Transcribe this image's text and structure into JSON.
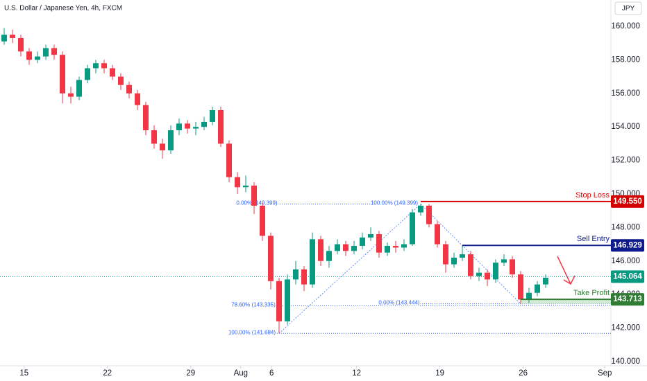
{
  "chart_data": {
    "type": "candlestick",
    "title": "U.S. Dollar / Japanese Yen, 4h, FXCM",
    "currency": "JPY",
    "up_color": "#089981",
    "down_color": "#f23645",
    "grid": false,
    "xlim": [
      -0.5,
      72.8333
    ],
    "ylim": [
      139.75,
      161.57
    ],
    "xticks": [
      {
        "value": 2.4,
        "label": "15"
      },
      {
        "value": 12.4,
        "label": "22"
      },
      {
        "value": 22.4,
        "label": "29"
      },
      {
        "value": 28.4,
        "label": "Aug"
      },
      {
        "value": 32.1,
        "label": "6"
      },
      {
        "value": 42.3,
        "label": "12"
      },
      {
        "value": 52.3,
        "label": "19"
      },
      {
        "value": 62.3,
        "label": "26"
      },
      {
        "value": 72.1,
        "label": "Sep"
      }
    ],
    "yticks": [
      {
        "value": 140,
        "label": "140.000"
      },
      {
        "value": 142,
        "label": "142.000"
      },
      {
        "value": 144,
        "label": "144.000"
      },
      {
        "value": 146,
        "label": "146.000"
      },
      {
        "value": 148,
        "label": "148.000"
      },
      {
        "value": 150,
        "label": "150.000"
      },
      {
        "value": 152,
        "label": "152.000"
      },
      {
        "value": 154,
        "label": "154.000"
      },
      {
        "value": 156,
        "label": "156.000"
      },
      {
        "value": 158,
        "label": "158.000"
      },
      {
        "value": 160,
        "label": "160.000"
      }
    ],
    "ohlc": [
      [
        159.1,
        159.9,
        158.9,
        159.5
      ],
      [
        159.5,
        159.8,
        159.0,
        159.3
      ],
      [
        159.3,
        159.5,
        158.2,
        158.5
      ],
      [
        158.5,
        158.7,
        157.7,
        158.0
      ],
      [
        158.0,
        158.5,
        157.8,
        158.2
      ],
      [
        158.2,
        158.9,
        158.0,
        158.7
      ],
      [
        158.7,
        158.9,
        158.0,
        158.3
      ],
      [
        158.3,
        158.5,
        155.4,
        156.0
      ],
      [
        156.0,
        156.4,
        155.4,
        155.8
      ],
      [
        155.8,
        157.0,
        155.6,
        156.8
      ],
      [
        156.8,
        157.7,
        156.6,
        157.5
      ],
      [
        157.5,
        158.0,
        157.2,
        157.8
      ],
      [
        157.8,
        158.0,
        157.2,
        157.5
      ],
      [
        157.5,
        157.7,
        156.8,
        157.0
      ],
      [
        157.0,
        157.2,
        156.2,
        156.5
      ],
      [
        156.5,
        156.7,
        155.7,
        156.0
      ],
      [
        156.0,
        156.2,
        155.0,
        155.3
      ],
      [
        155.3,
        155.5,
        153.5,
        153.8
      ],
      [
        153.8,
        154.1,
        152.7,
        153.0
      ],
      [
        153.0,
        153.3,
        152.1,
        152.6
      ],
      [
        152.6,
        154.1,
        152.4,
        153.8
      ],
      [
        153.8,
        154.5,
        153.5,
        154.2
      ],
      [
        154.2,
        154.4,
        153.6,
        153.9
      ],
      [
        153.9,
        154.3,
        153.5,
        154.0
      ],
      [
        154.0,
        154.6,
        153.8,
        154.3
      ],
      [
        154.3,
        155.2,
        154.1,
        155.0
      ],
      [
        155.0,
        155.2,
        152.8,
        153.0
      ],
      [
        153.0,
        153.2,
        150.7,
        151.0
      ],
      [
        151.0,
        151.3,
        150.0,
        150.4
      ],
      [
        150.4,
        151.1,
        150.1,
        150.5
      ],
      [
        150.5,
        150.7,
        148.8,
        149.3
      ],
      [
        149.3,
        149.5,
        147.2,
        147.5
      ],
      [
        147.5,
        147.7,
        144.3,
        144.8
      ],
      [
        144.8,
        145.0,
        141.684,
        142.4
      ],
      [
        142.4,
        145.2,
        142.2,
        144.9
      ],
      [
        144.9,
        146.0,
        144.6,
        145.5
      ],
      [
        145.5,
        145.7,
        144.2,
        144.6
      ],
      [
        144.6,
        147.7,
        144.4,
        147.3
      ],
      [
        147.3,
        147.5,
        145.7,
        146.0
      ],
      [
        146.0,
        146.9,
        145.6,
        146.6
      ],
      [
        146.6,
        147.3,
        146.4,
        147.0
      ],
      [
        147.0,
        147.2,
        146.3,
        146.6
      ],
      [
        146.6,
        147.2,
        146.4,
        146.9
      ],
      [
        146.9,
        147.7,
        146.7,
        147.4
      ],
      [
        147.4,
        148.0,
        147.2,
        147.6
      ],
      [
        147.6,
        147.8,
        146.2,
        146.5
      ],
      [
        146.5,
        147.1,
        146.3,
        146.9
      ],
      [
        146.9,
        147.2,
        146.5,
        146.8
      ],
      [
        146.8,
        147.3,
        146.6,
        147.0
      ],
      [
        147.0,
        149.1,
        146.9,
        148.9
      ],
      [
        148.9,
        149.399,
        148.7,
        149.3
      ],
      [
        149.3,
        149.4,
        148.0,
        148.2
      ],
      [
        148.2,
        148.4,
        146.8,
        147.0
      ],
      [
        147.0,
        147.2,
        145.3,
        145.8
      ],
      [
        145.8,
        146.5,
        145.6,
        146.2
      ],
      [
        146.2,
        146.9,
        146.0,
        146.4
      ],
      [
        146.4,
        146.6,
        144.9,
        145.1
      ],
      [
        145.1,
        145.6,
        144.8,
        145.3
      ],
      [
        145.3,
        145.5,
        144.5,
        144.9
      ],
      [
        144.9,
        146.1,
        144.7,
        145.9
      ],
      [
        145.9,
        146.4,
        145.7,
        146.1
      ],
      [
        146.1,
        146.3,
        145.0,
        145.2
      ],
      [
        145.2,
        145.4,
        143.444,
        143.7
      ],
      [
        143.7,
        144.4,
        143.5,
        144.1
      ],
      [
        144.1,
        144.8,
        143.9,
        144.6
      ],
      [
        144.6,
        145.2,
        144.4,
        145.0
      ]
    ],
    "levels": [
      {
        "name": "Stop Loss",
        "value": 149.55,
        "label": "149.550",
        "color": "#d50000"
      },
      {
        "name": "Sell Entry",
        "value": 146.929,
        "label": "146.929",
        "color": "#0d1b8c"
      },
      {
        "name": "Take Profit",
        "value": 143.713,
        "label": "143.713",
        "color": "#2e7d32"
      }
    ],
    "current_price": {
      "value": 145.064,
      "label": "145.064",
      "color": "#089981"
    },
    "fib": [
      {
        "label": "0.00% (149.399)",
        "value": 149.399
      },
      {
        "label": "100.00% (149.399)",
        "value": 149.399
      },
      {
        "label": "78.60% (143.335)",
        "value": 143.335
      },
      {
        "label": "100.00% (141.684)",
        "value": 141.684
      },
      {
        "label": "0.00% (143.444)",
        "value": 143.444
      }
    ]
  }
}
